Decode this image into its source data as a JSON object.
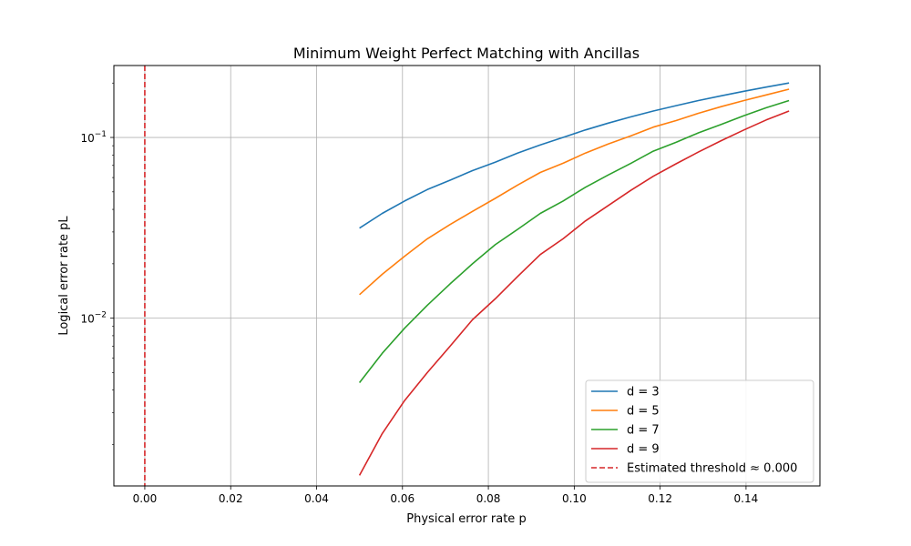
{
  "chart_data": {
    "type": "line",
    "title": "Minimum Weight Perfect Matching with Ancillas",
    "xlabel": "Physical error rate p",
    "ylabel": "Logical error rate pL",
    "xlim": [
      -0.0072,
      0.1572
    ],
    "ylim": [
      0.00118,
      0.25
    ],
    "yscale": "log",
    "grid": true,
    "legend_position": "lower-right",
    "x_ticks": [
      {
        "value": 0.0,
        "label": "0.00"
      },
      {
        "value": 0.02,
        "label": "0.02"
      },
      {
        "value": 0.04,
        "label": "0.04"
      },
      {
        "value": 0.06,
        "label": "0.06"
      },
      {
        "value": 0.08,
        "label": "0.08"
      },
      {
        "value": 0.1,
        "label": "0.10"
      },
      {
        "value": 0.12,
        "label": "0.12"
      },
      {
        "value": 0.14,
        "label": "0.14"
      }
    ],
    "y_major_ticks": [
      {
        "value": 0.01,
        "base": "10",
        "exp": "−2"
      },
      {
        "value": 0.1,
        "base": "10",
        "exp": "−1"
      }
    ],
    "y_minor_ticks": [
      0.002,
      0.003,
      0.004,
      0.005,
      0.006,
      0.007,
      0.008,
      0.009,
      0.02,
      0.03,
      0.04,
      0.05,
      0.06,
      0.07,
      0.08,
      0.09,
      0.2
    ],
    "x": [
      0.05,
      0.0553,
      0.0605,
      0.0658,
      0.0711,
      0.0763,
      0.0816,
      0.0868,
      0.0921,
      0.0974,
      0.1026,
      0.1079,
      0.1132,
      0.1184,
      0.1237,
      0.1289,
      0.1342,
      0.1395,
      0.1447,
      0.15
    ],
    "series": [
      {
        "name": "d = 3",
        "color": "#1f77b4",
        "values": [
          0.0315,
          0.038,
          0.0445,
          0.0515,
          0.058,
          0.0655,
          0.073,
          0.082,
          0.091,
          0.1,
          0.11,
          0.12,
          0.13,
          0.14,
          0.15,
          0.16,
          0.17,
          0.18,
          0.19,
          0.2
        ]
      },
      {
        "name": "d = 5",
        "color": "#ff7f0e",
        "values": [
          0.0135,
          0.0175,
          0.022,
          0.0275,
          0.033,
          0.039,
          0.046,
          0.0545,
          0.064,
          0.072,
          0.082,
          0.092,
          0.102,
          0.114,
          0.124,
          0.136,
          0.148,
          0.16,
          0.172,
          0.185
        ]
      },
      {
        "name": "d = 7",
        "color": "#2ca02c",
        "values": [
          0.0044,
          0.0064,
          0.0088,
          0.0118,
          0.0155,
          0.02,
          0.0255,
          0.031,
          0.038,
          0.0445,
          0.053,
          0.062,
          0.072,
          0.084,
          0.094,
          0.106,
          0.118,
          0.132,
          0.146,
          0.16
        ]
      },
      {
        "name": "d = 9",
        "color": "#d62728",
        "values": [
          0.00135,
          0.0023,
          0.0035,
          0.005,
          0.007,
          0.0098,
          0.0128,
          0.017,
          0.0225,
          0.0275,
          0.0345,
          0.042,
          0.051,
          0.061,
          0.0715,
          0.083,
          0.096,
          0.11,
          0.125,
          0.14
        ]
      }
    ],
    "threshold": {
      "x": 0.0,
      "label": "Estimated threshold ≈ 0.000",
      "color": "#d62728"
    }
  }
}
